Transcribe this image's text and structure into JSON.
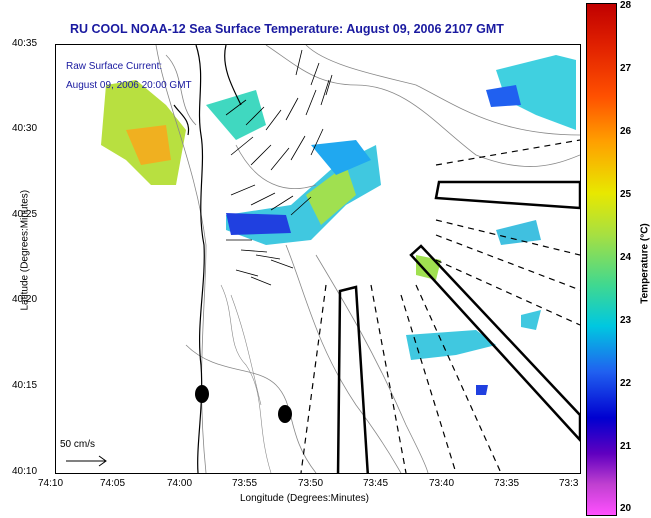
{
  "title": "RU COOL  NOAA-12  Sea Surface Temperature:  August 09, 2006 2107 GMT",
  "legend": {
    "line1": "Raw Surface Current:",
    "line2": "August 09, 2006 20:00 GMT"
  },
  "scale_label": "50 cm/s",
  "axes": {
    "xlabel": "Longitude (Degrees:Minutes)",
    "ylabel": "Latitude (Degrees:Minutes)",
    "xticks": [
      "74:10",
      "74:05",
      "74:00",
      "73:55",
      "73:50",
      "73:45",
      "73:40",
      "73:35",
      "73:3"
    ],
    "yticks": [
      "40:35",
      "40:30",
      "40:25",
      "40:20",
      "40:15",
      "40:10"
    ]
  },
  "colorbar": {
    "label": "Temperature (°C)",
    "ticks": [
      "28",
      "27",
      "26",
      "25",
      "24",
      "23",
      "22",
      "21",
      "20"
    ],
    "range": [
      20,
      28
    ]
  },
  "colors": {
    "title": "#1a1aa0",
    "coast": "#000000",
    "bathymetry": "#888888"
  }
}
